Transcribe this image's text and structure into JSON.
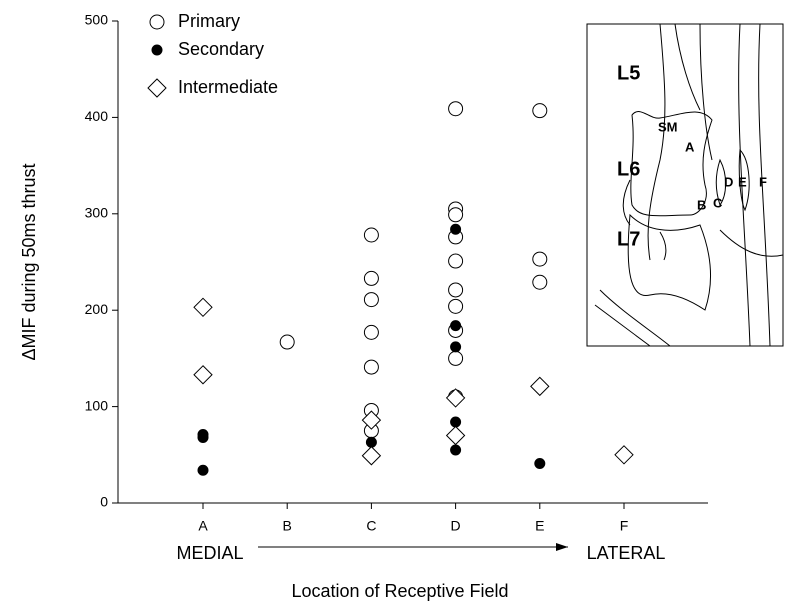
{
  "chart_data": {
    "type": "scatter",
    "categories": [
      "A",
      "B",
      "C",
      "D",
      "E",
      "F"
    ],
    "x_label": "Location of Receptive Field",
    "y_label": "ΔMIF during 50ms thrust",
    "ylim": [
      0,
      500
    ],
    "yticks": [
      0,
      100,
      200,
      300,
      400,
      500
    ],
    "legend": "top-left",
    "annotations": [
      "MEDIAL",
      "LATERAL"
    ],
    "inset_labels": [
      "L5",
      "L6",
      "L7",
      "SM",
      "A",
      "B",
      "C",
      "D",
      "E",
      "F"
    ],
    "series": [
      {
        "name": "Primary",
        "marker": "open-circle",
        "color": "#000000",
        "x": [
          "B",
          "C",
          "C",
          "C",
          "C",
          "C",
          "C",
          "C",
          "D",
          "D",
          "D",
          "D",
          "D",
          "D",
          "D",
          "D",
          "D",
          "D",
          "E",
          "E",
          "E"
        ],
        "values": [
          167,
          278,
          233,
          211,
          177,
          141,
          96,
          75,
          409,
          305,
          299,
          276,
          251,
          221,
          204,
          179,
          150,
          110,
          407,
          253,
          229
        ]
      },
      {
        "name": "Secondary",
        "marker": "filled-circle",
        "color": "#000000",
        "x": [
          "A",
          "A",
          "A",
          "C",
          "D",
          "D",
          "D",
          "D",
          "D",
          "E"
        ],
        "values": [
          71,
          68,
          34,
          63,
          284,
          184,
          162,
          84,
          55,
          41
        ]
      },
      {
        "name": "Intermediate",
        "marker": "open-diamond",
        "color": "#000000",
        "x": [
          "A",
          "A",
          "C",
          "C",
          "D",
          "D",
          "E",
          "F"
        ],
        "values": [
          203,
          133,
          86,
          49,
          109,
          70,
          121,
          50
        ]
      }
    ]
  }
}
